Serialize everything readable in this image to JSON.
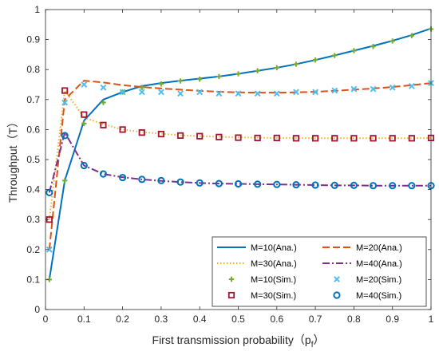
{
  "chart_data": {
    "type": "line",
    "title": "",
    "xlabel": "First transmission probability（p",
    "xlabel_sub": "f",
    "xlabel_close": "）",
    "ylabel": "Throughput（T）",
    "xlim": [
      0,
      1
    ],
    "ylim": [
      0,
      1
    ],
    "xticks": [
      "0",
      "0.1",
      "0.2",
      "0.3",
      "0.4",
      "0.5",
      "0.6",
      "0.7",
      "0.8",
      "0.9",
      "1"
    ],
    "yticks": [
      "0",
      "0.1",
      "0.2",
      "0.3",
      "0.4",
      "0.5",
      "0.6",
      "0.7",
      "0.8",
      "0.9",
      "1"
    ],
    "grid": false,
    "legend_position": "bottom-right",
    "series": [
      {
        "name": "M=10(Ana.)",
        "style": "solid",
        "color": "#0072BD",
        "x": [
          0.01,
          0.05,
          0.1,
          0.15,
          0.2,
          0.25,
          0.3,
          0.35,
          0.4,
          0.45,
          0.5,
          0.55,
          0.6,
          0.65,
          0.7,
          0.75,
          0.8,
          0.85,
          0.9,
          0.95,
          1.0
        ],
        "y": [
          0.1,
          0.43,
          0.63,
          0.7,
          0.725,
          0.745,
          0.755,
          0.763,
          0.77,
          0.777,
          0.786,
          0.796,
          0.806,
          0.818,
          0.832,
          0.847,
          0.863,
          0.879,
          0.896,
          0.915,
          0.937
        ]
      },
      {
        "name": "M=20(Ana.)",
        "style": "dashed",
        "color": "#D95319",
        "x": [
          0.01,
          0.05,
          0.1,
          0.15,
          0.2,
          0.25,
          0.3,
          0.35,
          0.4,
          0.45,
          0.5,
          0.55,
          0.6,
          0.65,
          0.7,
          0.75,
          0.8,
          0.85,
          0.9,
          0.95,
          1.0
        ],
        "y": [
          0.2,
          0.7,
          0.763,
          0.757,
          0.748,
          0.742,
          0.737,
          0.733,
          0.729,
          0.726,
          0.724,
          0.723,
          0.723,
          0.724,
          0.726,
          0.729,
          0.733,
          0.737,
          0.742,
          0.748,
          0.755
        ]
      },
      {
        "name": "M=30(Ana.)",
        "style": "dotted",
        "color": "#EDB120",
        "x": [
          0.01,
          0.05,
          0.1,
          0.15,
          0.2,
          0.25,
          0.3,
          0.35,
          0.4,
          0.45,
          0.5,
          0.55,
          0.6,
          0.65,
          0.7,
          0.75,
          0.8,
          0.85,
          0.9,
          0.95,
          1.0
        ],
        "y": [
          0.3,
          0.73,
          0.64,
          0.618,
          0.6,
          0.592,
          0.586,
          0.581,
          0.578,
          0.576,
          0.574,
          0.573,
          0.572,
          0.572,
          0.571,
          0.571,
          0.571,
          0.571,
          0.571,
          0.571,
          0.572
        ]
      },
      {
        "name": "M=40(Ana.)",
        "style": "dashdot",
        "color": "#7E2F8E",
        "x": [
          0.01,
          0.05,
          0.1,
          0.15,
          0.2,
          0.25,
          0.3,
          0.35,
          0.4,
          0.45,
          0.5,
          0.55,
          0.6,
          0.65,
          0.7,
          0.75,
          0.8,
          0.85,
          0.9,
          0.95,
          1.0
        ],
        "y": [
          0.39,
          0.59,
          0.48,
          0.452,
          0.441,
          0.434,
          0.429,
          0.425,
          0.422,
          0.42,
          0.419,
          0.418,
          0.417,
          0.416,
          0.415,
          0.414,
          0.414,
          0.413,
          0.413,
          0.413,
          0.413
        ]
      },
      {
        "name": "M=10(Sim.)",
        "style": "marker",
        "marker": "plus",
        "color": "#77AC30",
        "x": [
          0.01,
          0.05,
          0.1,
          0.15,
          0.2,
          0.25,
          0.3,
          0.35,
          0.4,
          0.45,
          0.5,
          0.55,
          0.6,
          0.65,
          0.7,
          0.75,
          0.8,
          0.85,
          0.9,
          0.95,
          1.0
        ],
        "y": [
          0.1,
          0.43,
          0.62,
          0.69,
          0.725,
          0.74,
          0.752,
          0.762,
          0.768,
          0.777,
          0.786,
          0.796,
          0.806,
          0.818,
          0.832,
          0.847,
          0.863,
          0.877,
          0.895,
          0.913,
          0.935
        ]
      },
      {
        "name": "M=20(Sim.)",
        "style": "marker",
        "marker": "x",
        "color": "#4DBEEE",
        "x": [
          0.01,
          0.05,
          0.1,
          0.15,
          0.2,
          0.25,
          0.3,
          0.35,
          0.4,
          0.45,
          0.5,
          0.55,
          0.6,
          0.65,
          0.7,
          0.75,
          0.8,
          0.85,
          0.9,
          0.95,
          1.0
        ],
        "y": [
          0.2,
          0.69,
          0.75,
          0.74,
          0.725,
          0.725,
          0.725,
          0.72,
          0.725,
          0.72,
          0.72,
          0.72,
          0.72,
          0.725,
          0.725,
          0.73,
          0.735,
          0.735,
          0.74,
          0.745,
          0.755
        ]
      },
      {
        "name": "M=30(Sim.)",
        "style": "marker",
        "marker": "square",
        "color": "#A2142F",
        "x": [
          0.01,
          0.05,
          0.1,
          0.15,
          0.2,
          0.25,
          0.3,
          0.35,
          0.4,
          0.45,
          0.5,
          0.55,
          0.6,
          0.65,
          0.7,
          0.75,
          0.8,
          0.85,
          0.9,
          0.95,
          1.0
        ],
        "y": [
          0.3,
          0.73,
          0.65,
          0.615,
          0.6,
          0.59,
          0.585,
          0.58,
          0.578,
          0.575,
          0.573,
          0.572,
          0.572,
          0.571,
          0.571,
          0.571,
          0.571,
          0.571,
          0.571,
          0.571,
          0.572
        ]
      },
      {
        "name": "M=40(Sim.)",
        "style": "marker",
        "marker": "circle",
        "color": "#0072BD",
        "x": [
          0.01,
          0.05,
          0.1,
          0.15,
          0.2,
          0.25,
          0.3,
          0.35,
          0.4,
          0.45,
          0.5,
          0.55,
          0.6,
          0.65,
          0.7,
          0.75,
          0.8,
          0.85,
          0.9,
          0.95,
          1.0
        ],
        "y": [
          0.39,
          0.58,
          0.48,
          0.452,
          0.44,
          0.434,
          0.43,
          0.425,
          0.422,
          0.42,
          0.419,
          0.418,
          0.417,
          0.416,
          0.415,
          0.414,
          0.414,
          0.413,
          0.413,
          0.413,
          0.413
        ]
      }
    ]
  }
}
